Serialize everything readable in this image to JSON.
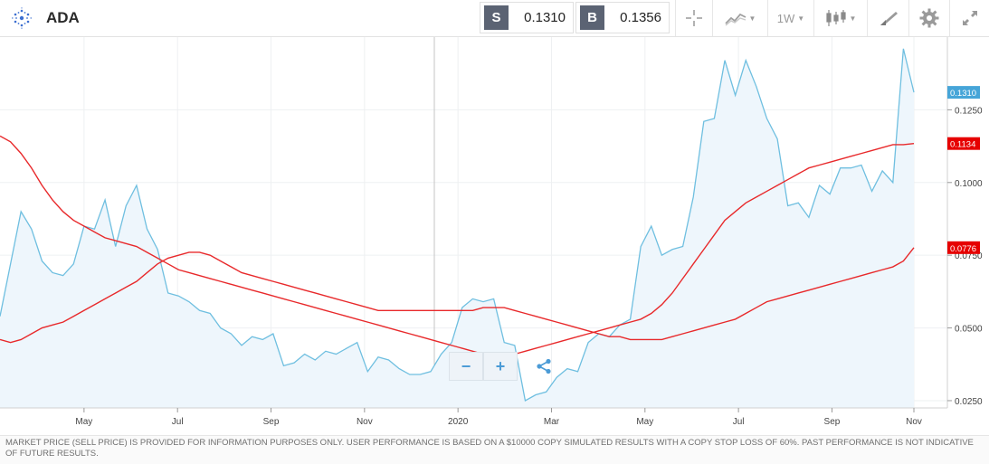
{
  "header": {
    "symbol": "ADA",
    "sell_label": "S",
    "sell_price": "0.1310",
    "buy_label": "B",
    "buy_price": "0.1356",
    "timeframe": "1W",
    "icons": [
      "cardano-logo-icon",
      "crosshair-icon",
      "chart-type-icon",
      "candlestick-icon",
      "drawing-tool-icon",
      "gear-icon",
      "expand-icon"
    ]
  },
  "price_tags": {
    "current": "0.1310",
    "ma1": "0.1134",
    "ma2": "0.0776"
  },
  "chart_data": {
    "type": "area",
    "series": [
      {
        "values": [
          0.054,
          0.072,
          0.09,
          0.084,
          0.073,
          0.069,
          0.068,
          0.072,
          0.085,
          0.084,
          0.094,
          0.078,
          0.092,
          0.099,
          0.084,
          0.077,
          0.062,
          0.061,
          0.059,
          0.056,
          0.055,
          0.05,
          0.048,
          0.044,
          0.047,
          0.046,
          0.048,
          0.037,
          0.038,
          0.041,
          0.039,
          0.042,
          0.041,
          0.043,
          0.045,
          0.035,
          0.04,
          0.039,
          0.036,
          0.034,
          0.034,
          0.035,
          0.041,
          0.045,
          0.057,
          0.06,
          0.059,
          0.06,
          0.045,
          0.044,
          0.025,
          0.027,
          0.028,
          0.033,
          0.036,
          0.035,
          0.045,
          0.048,
          0.047,
          0.051,
          0.053,
          0.078,
          0.085,
          0.075,
          0.077,
          0.078,
          0.095,
          0.121,
          0.122,
          0.142,
          0.13,
          0.142,
          0.133,
          0.122,
          0.115,
          0.092,
          0.093,
          0.088,
          0.099,
          0.096,
          0.105,
          0.105,
          0.106,
          0.097,
          0.104,
          0.1,
          0.146,
          0.131
        ]
      },
      {
        "values": [
          0.116,
          0.114,
          0.11,
          0.105,
          0.099,
          0.094,
          0.09,
          0.087,
          0.085,
          0.083,
          0.081,
          0.08,
          0.079,
          0.078,
          0.076,
          0.074,
          0.072,
          0.07,
          0.069,
          0.068,
          0.067,
          0.066,
          0.065,
          0.064,
          0.063,
          0.062,
          0.061,
          0.06,
          0.059,
          0.058,
          0.057,
          0.056,
          0.055,
          0.054,
          0.053,
          0.052,
          0.051,
          0.05,
          0.049,
          0.048,
          0.047,
          0.046,
          0.045,
          0.044,
          0.043,
          0.042,
          0.041,
          0.04,
          0.04,
          0.041,
          0.042,
          0.043,
          0.044,
          0.045,
          0.046,
          0.047,
          0.048,
          0.049,
          0.05,
          0.051,
          0.052,
          0.053,
          0.055,
          0.058,
          0.062,
          0.067,
          0.072,
          0.077,
          0.082,
          0.087,
          0.09,
          0.093,
          0.095,
          0.097,
          0.099,
          0.101,
          0.103,
          0.105,
          0.106,
          0.107,
          0.108,
          0.109,
          0.11,
          0.111,
          0.112,
          0.113,
          0.113,
          0.1134
        ]
      },
      {
        "values": [
          0.046,
          0.045,
          0.046,
          0.048,
          0.05,
          0.051,
          0.052,
          0.054,
          0.056,
          0.058,
          0.06,
          0.062,
          0.064,
          0.066,
          0.069,
          0.072,
          0.074,
          0.075,
          0.076,
          0.076,
          0.075,
          0.073,
          0.071,
          0.069,
          0.068,
          0.067,
          0.066,
          0.065,
          0.064,
          0.063,
          0.062,
          0.061,
          0.06,
          0.059,
          0.058,
          0.057,
          0.056,
          0.056,
          0.056,
          0.056,
          0.056,
          0.056,
          0.056,
          0.056,
          0.056,
          0.056,
          0.057,
          0.057,
          0.057,
          0.056,
          0.055,
          0.054,
          0.053,
          0.052,
          0.051,
          0.05,
          0.049,
          0.048,
          0.047,
          0.047,
          0.046,
          0.046,
          0.046,
          0.046,
          0.047,
          0.048,
          0.049,
          0.05,
          0.051,
          0.052,
          0.053,
          0.055,
          0.057,
          0.059,
          0.06,
          0.061,
          0.062,
          0.063,
          0.064,
          0.065,
          0.066,
          0.067,
          0.068,
          0.069,
          0.07,
          0.071,
          0.073,
          0.0776
        ]
      }
    ],
    "y_ticks": [
      "0.1250",
      "0.1000",
      "0.0750",
      "0.0500",
      "0.0250"
    ],
    "ylim": [
      0.0225,
      0.15
    ],
    "x_tick_labels": [
      "May",
      "Jul",
      "Sep",
      "Nov",
      "2020",
      "Mar",
      "May",
      "Jul",
      "Sep",
      "Nov"
    ],
    "colors": {
      "price": "#6fbfe0",
      "price_fill": "#eef6fc",
      "ma": "#e8292b",
      "grid": "#eef0f2",
      "current_tag": "#46a5d8",
      "ma_tag": "#e60000"
    }
  },
  "controls": {
    "zoom_out": "−",
    "zoom_in": "+",
    "share_icon": "share-icon"
  },
  "disclaimer": "MARKET PRICE (SELL PRICE) IS PROVIDED FOR INFORMATION PURPOSES ONLY. USER PERFORMANCE IS BASED ON A $10000 COPY SIMULATED RESULTS WITH A COPY STOP LOSS OF 60%. PAST PERFORMANCE IS NOT INDICATIVE OF FUTURE RESULTS."
}
